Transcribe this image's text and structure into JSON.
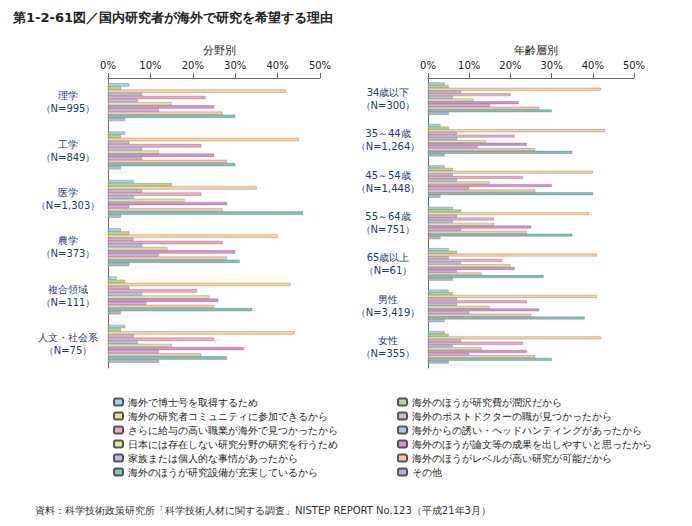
{
  "title": "第1-2-61図／国内研究者が海外で研究を希望する理由",
  "note": "資料：科学技術政策研究所「科学技術人材に関する調査」NISTEP REPORT No.123（平成21年3月）",
  "chart_data": [
    {
      "type": "bar",
      "orientation": "horizontal",
      "title": "分野別",
      "grid": false,
      "xlim": [
        0,
        50
      ],
      "xticks": [
        {
          "value": 0,
          "label": "0%"
        },
        {
          "value": 10,
          "label": "10%"
        },
        {
          "value": 20,
          "label": "20%"
        },
        {
          "value": 30,
          "label": "30%"
        },
        {
          "value": 40,
          "label": "40%"
        },
        {
          "value": 50,
          "label": "50%"
        }
      ],
      "categories": [
        "理学\n（N=995）",
        "工学\n（N=849）",
        "医学\n（N=1,303）",
        "農学\n（N=373）",
        "複合領域\n（N=111）",
        "人文・社会系\n（N=75）"
      ],
      "series": [
        {
          "name": "海外で博士号を取得するため",
          "color": "#9fd4e8",
          "values": [
            5,
            4,
            6,
            3,
            2,
            4
          ]
        },
        {
          "name": "海外のほうが研究費が潤沢だから",
          "color": "#b5d98a",
          "values": [
            3,
            3,
            15,
            5,
            4,
            3
          ]
        },
        {
          "name": "海外の研究者コミュニティに参加できるから",
          "color": "#fcd39b",
          "values": [
            42,
            45,
            35,
            40,
            43,
            44
          ]
        },
        {
          "name": "海外のポストドクターの職が見つかったから",
          "color": "#c5b8e0",
          "values": [
            8,
            5,
            8,
            6,
            5,
            6
          ]
        },
        {
          "name": "さらに給与の高い職業が海外で見つかったから",
          "color": "#f4a6c6",
          "values": [
            23,
            22,
            22,
            27,
            21,
            25
          ]
        },
        {
          "name": "海外からの誘い・ヘッドハンティングがあったから",
          "color": "#a9c7e8",
          "values": [
            7,
            8,
            6,
            8,
            8,
            7
          ]
        },
        {
          "name": "日本には存在しない研究分野の研究を行うため",
          "color": "#e3e39c",
          "values": [
            15,
            12,
            18,
            14,
            24,
            15
          ]
        },
        {
          "name": "海外のほうが論文等の成果を出しやすいと思ったから",
          "color": "#d98ccf",
          "values": [
            25,
            25,
            28,
            30,
            26,
            32
          ]
        },
        {
          "name": "家族または個人的な事情があったから",
          "color": "#c9b3e0",
          "values": [
            12,
            8,
            5,
            12,
            9,
            12
          ]
        },
        {
          "name": "海外のほうがレベルが高い研究が可能だから",
          "color": "#f7c7a8",
          "values": [
            27,
            28,
            27,
            28,
            25,
            22
          ]
        },
        {
          "name": "海外のほうが研究設備が充実しているから",
          "color": "#7fbfbf",
          "values": [
            30,
            30,
            46,
            31,
            34,
            28
          ]
        },
        {
          "name": "その他",
          "color": "#b0b8d0",
          "values": [
            4,
            3,
            3,
            5,
            3,
            12
          ]
        }
      ]
    },
    {
      "type": "bar",
      "orientation": "horizontal",
      "title": "年齢層別",
      "grid": false,
      "xlim": [
        0,
        50
      ],
      "xticks": [
        {
          "value": 0,
          "label": "0%"
        },
        {
          "value": 10,
          "label": "10%"
        },
        {
          "value": 20,
          "label": "20%"
        },
        {
          "value": 30,
          "label": "30%"
        },
        {
          "value": 40,
          "label": "40%"
        },
        {
          "value": 50,
          "label": "50%"
        }
      ],
      "categories": [
        "34歳以下\n（N=300）",
        "35～44歳\n（N=1,264）",
        "45～54歳\n（N=1,448）",
        "55～64歳\n（N=751）",
        "65歳以上\n（N=61）",
        "男性\n（N=3,419）",
        "女性\n（N=355）"
      ],
      "series": [
        {
          "name": "海外で博士号を取得するため",
          "color": "#9fd4e8",
          "values": [
            4,
            3,
            4,
            6,
            5,
            5,
            4
          ]
        },
        {
          "name": "海外のほうが研究費が潤沢だから",
          "color": "#b5d98a",
          "values": [
            5,
            5,
            6,
            8,
            7,
            6,
            5
          ]
        },
        {
          "name": "海外の研究者コミュニティに参加できるから",
          "color": "#fcd39b",
          "values": [
            42,
            43,
            40,
            39,
            41,
            41,
            42
          ]
        },
        {
          "name": "海外のポストドクターの職が見つかったから",
          "color": "#c5b8e0",
          "values": [
            8,
            7,
            6,
            7,
            5,
            7,
            8
          ]
        },
        {
          "name": "さらに給与の高い職業が海外で見つかったから",
          "color": "#f4a6c6",
          "values": [
            20,
            21,
            23,
            16,
            18,
            24,
            23
          ]
        },
        {
          "name": "海外からの誘い・ヘッドハンティングがあったから",
          "color": "#a9c7e8",
          "values": [
            6,
            7,
            7,
            6,
            8,
            7,
            6
          ]
        },
        {
          "name": "日本には存在しない研究分野の研究を行うため",
          "color": "#e3e39c",
          "values": [
            11,
            14,
            15,
            16,
            20,
            15,
            13
          ]
        },
        {
          "name": "海外のほうが論文等の成果を出しやすいと思ったから",
          "color": "#d98ccf",
          "values": [
            22,
            24,
            30,
            25,
            21,
            27,
            24
          ]
        },
        {
          "name": "家族または個人的な事情があったから",
          "color": "#c9b3e0",
          "values": [
            15,
            12,
            10,
            8,
            7,
            10,
            10
          ]
        },
        {
          "name": "海外のほうがレベルが高い研究が可能だから",
          "color": "#f7c7a8",
          "values": [
            27,
            26,
            26,
            24,
            13,
            25,
            26
          ]
        },
        {
          "name": "海外のほうが研究設備が充実しているから",
          "color": "#7fbfbf",
          "values": [
            30,
            35,
            40,
            35,
            28,
            38,
            30
          ]
        },
        {
          "name": "その他",
          "color": "#b0b8d0",
          "values": [
            5,
            4,
            3,
            3,
            6,
            4,
            5
          ]
        }
      ]
    }
  ]
}
